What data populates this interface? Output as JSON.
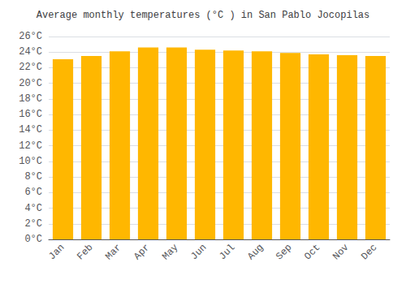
{
  "chart_data": {
    "type": "bar",
    "title": "Average monthly temperatures (°C ) in San Pablo Jocopilas",
    "categories": [
      "Jan",
      "Feb",
      "Mar",
      "Apr",
      "May",
      "Jun",
      "Jul",
      "Aug",
      "Sep",
      "Oct",
      "Nov",
      "Dec"
    ],
    "values": [
      23.1,
      23.5,
      24.1,
      24.6,
      24.6,
      24.3,
      24.2,
      24.1,
      23.9,
      23.7,
      23.6,
      23.5
    ],
    "color": "#FFB700",
    "ylim": [
      0,
      26
    ],
    "yticks": [
      {
        "value": 0,
        "label": "0°C"
      },
      {
        "value": 2,
        "label": "2°C"
      },
      {
        "value": 4,
        "label": "4°C"
      },
      {
        "value": 6,
        "label": "6°C"
      },
      {
        "value": 8,
        "label": "8°C"
      },
      {
        "value": 10,
        "label": "10°C"
      },
      {
        "value": 12,
        "label": "12°C"
      },
      {
        "value": 14,
        "label": "14°C"
      },
      {
        "value": 16,
        "label": "16°C"
      },
      {
        "value": 18,
        "label": "18°C"
      },
      {
        "value": 20,
        "label": "20°C"
      },
      {
        "value": 22,
        "label": "22°C"
      },
      {
        "value": 24,
        "label": "24°C"
      },
      {
        "value": 26,
        "label": "26°C"
      }
    ],
    "grid": true
  }
}
